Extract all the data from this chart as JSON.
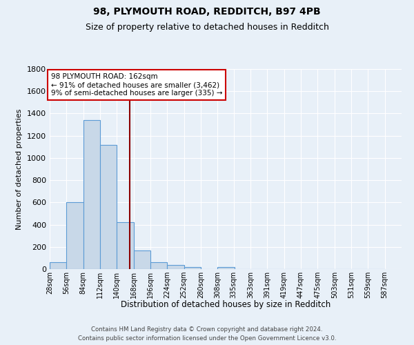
{
  "title1": "98, PLYMOUTH ROAD, REDDITCH, B97 4PB",
  "title2": "Size of property relative to detached houses in Redditch",
  "xlabel": "Distribution of detached houses by size in Redditch",
  "ylabel": "Number of detached properties",
  "footnote": "Contains HM Land Registry data © Crown copyright and database right 2024.\nContains public sector information licensed under the Open Government Licence v3.0.",
  "bin_labels": [
    "28sqm",
    "56sqm",
    "84sqm",
    "112sqm",
    "140sqm",
    "168sqm",
    "196sqm",
    "224sqm",
    "252sqm",
    "280sqm",
    "308sqm",
    "335sqm",
    "363sqm",
    "391sqm",
    "419sqm",
    "447sqm",
    "475sqm",
    "503sqm",
    "531sqm",
    "559sqm",
    "587sqm"
  ],
  "bar_values": [
    60,
    600,
    1340,
    1120,
    420,
    170,
    65,
    40,
    20,
    0,
    20,
    0,
    0,
    0,
    0,
    0,
    0,
    0,
    0,
    0
  ],
  "bin_edges": [
    28,
    56,
    84,
    112,
    140,
    168,
    196,
    224,
    252,
    280,
    308,
    335,
    363,
    391,
    419,
    447,
    475,
    503,
    531,
    559,
    587
  ],
  "bar_color": "#c8d8e8",
  "bar_edge_color": "#5b9bd5",
  "vline_x": 162,
  "vline_color": "#8b0000",
  "annotation_text": "98 PLYMOUTH ROAD: 162sqm\n← 91% of detached houses are smaller (3,462)\n9% of semi-detached houses are larger (335) →",
  "annotation_box_color": "#ffffff",
  "annotation_box_edge_color": "#cc0000",
  "ylim": [
    0,
    1800
  ],
  "yticks": [
    0,
    200,
    400,
    600,
    800,
    1000,
    1200,
    1400,
    1600,
    1800
  ],
  "background_color": "#e8f0f8",
  "grid_color": "#ffffff"
}
